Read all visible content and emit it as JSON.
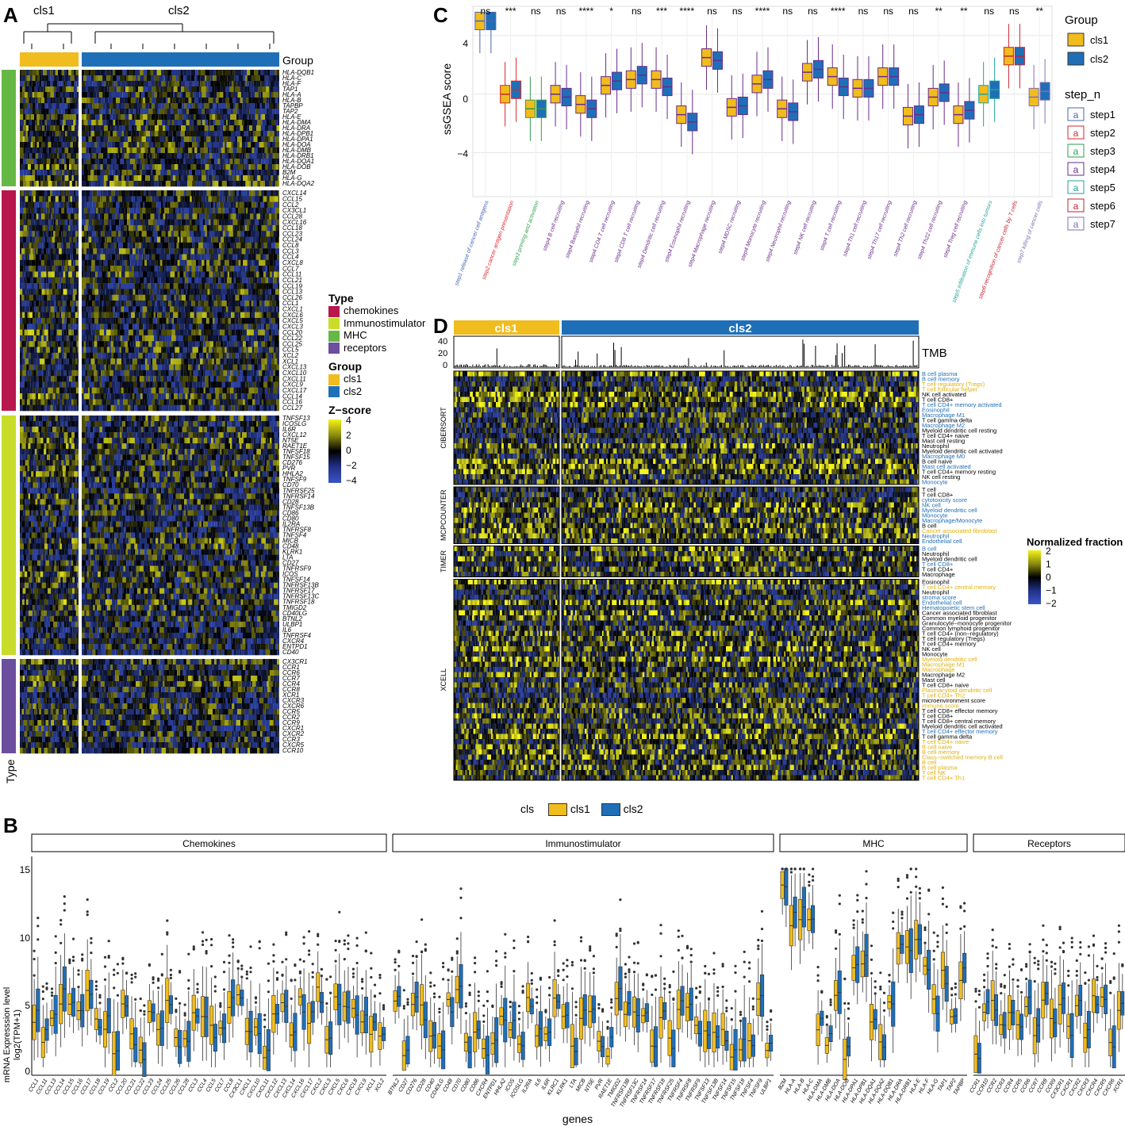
{
  "panel_letters": {
    "a": "A",
    "b": "B",
    "c": "C",
    "d": "D"
  },
  "colors": {
    "cls1": "#F0BC1E",
    "cls2": "#1F6FB8",
    "chemokines": "#B8174D",
    "Immunostimulator": "#C7DD2A",
    "MHC": "#66B845",
    "receptors": "#6C4E9E",
    "heat_low": "#2A3FA0",
    "heat_mid": "#000000",
    "heat_high": "#F4F41A",
    "step1": "#4A64B0",
    "step2": "#D9262C",
    "step3": "#2E9E4D",
    "step4": "#6A2A8A",
    "step5": "#23A39A",
    "step6": "#C4212F",
    "step7": "#7E6FB4"
  },
  "panelA": {
    "cluster_labels": [
      "cls1",
      "cls2"
    ],
    "group_label": "Group",
    "type_label": "Type",
    "legend_type_title": "Type",
    "legend_types": [
      "chemokines",
      "Immunostimulator",
      "MHC",
      "receptors"
    ],
    "legend_group_title": "Group",
    "legend_groups": [
      "cls1",
      "cls2"
    ],
    "legend_z_title": "Z−score",
    "legend_z_ticks": [
      "4",
      "2",
      "0",
      "−2",
      "−4"
    ],
    "genes_mhc": [
      "HLA-DQB1",
      "HLA-C",
      "HLA-F",
      "TAP1",
      "HLA-A",
      "HLA-B",
      "TAPBP",
      "TAP2",
      "HLA-E",
      "HLA-DMA",
      "HLA-DRA",
      "HLA-DPB1",
      "HLA-DPA1",
      "HLA-DOA",
      "HLA-DMB",
      "HLA-DRB1",
      "HLA-DQA1",
      "HLA-DOB",
      "B2M",
      "HLA-G",
      "HLA-DQA2"
    ],
    "genes_chemokines": [
      "CXCL14",
      "CCL15",
      "CCL2",
      "CX3CL1",
      "CCL28",
      "CXCL16",
      "CCL18",
      "CCL23",
      "CCL24",
      "CCL8",
      "CCL3",
      "CCL4",
      "CXCL8",
      "CCL7",
      "CCL11",
      "CCL21",
      "CCL19",
      "CCL13",
      "CCL26",
      "CCL1",
      "CXCL1",
      "CXCL6",
      "CXCL5",
      "CXCL3",
      "CCL20",
      "CCL22",
      "CCL25",
      "CCL5",
      "XCL2",
      "XCL1",
      "CXCL13",
      "CXCL10",
      "CXCL11",
      "CXCL9",
      "CXCL17",
      "CCL14",
      "CCL16",
      "CCL27"
    ],
    "genes_immuno": [
      "TNFSF13",
      "ICOSLG",
      "IL6R",
      "CXCL12",
      "NT5E",
      "RAET1E",
      "TNFSF18",
      "TNFSF15",
      "CD276",
      "PVR",
      "HHLA2",
      "TNFSF9",
      "CD70",
      "TNFRSF25",
      "TNFRSF14",
      "CD28",
      "TNFSF13B",
      "CD86",
      "CD80",
      "IL2RA",
      "TNFRSF8",
      "TNFSF4",
      "MICB",
      "CD48",
      "KLRK1",
      "LTA",
      "CD27",
      "TNFRSF9",
      "ICOS",
      "TNFSF14",
      "TNFRSF13B",
      "TNFRSF17",
      "TNFRSF13C",
      "TNFRSF18",
      "TMIGD2",
      "CD40LG",
      "BTNL2",
      "ULBP1",
      "IL6",
      "TNFRSF4",
      "CXCR4",
      "ENTPD1",
      "CD40"
    ],
    "genes_receptors": [
      "CX3CR1",
      "CCR1",
      "CCR6",
      "CCR7",
      "CCR4",
      "CCR8",
      "XCR1",
      "CXCR3",
      "CXCR6",
      "CCR5",
      "CCR2",
      "CCR9",
      "CXCR1",
      "CXCR2",
      "CCR3",
      "CXCR5",
      "CCR10"
    ]
  },
  "panelB": {
    "legend_title": "cls",
    "legend_items": [
      "cls1",
      "cls2"
    ],
    "facets": [
      "Chemokines",
      "Immunostimulator",
      "MHC",
      "Receptors"
    ],
    "ylabel_line1": "mRNA Expresssion level",
    "ylabel_line2": "log2(TPM+1)",
    "xlabel": "genes",
    "yticks": [
      "15",
      "10",
      "5",
      "0"
    ],
    "genes_chemokines": [
      "CCL1",
      "CCL11",
      "CCL13",
      "CCL14",
      "CCL15",
      "CCL16",
      "CCL17",
      "CCL18",
      "CCL19",
      "CCL2",
      "CCL20",
      "CCL21",
      "CCL22",
      "CCL23",
      "CCL24",
      "CCL25",
      "CCL26",
      "CCL28",
      "CCL3",
      "CCL4",
      "CCL5",
      "CCL7",
      "CCL8",
      "CX3CL1",
      "CXCL1",
      "CXCL10",
      "CXCL11",
      "CXCL12",
      "CXCL13",
      "CXCL14",
      "CXCL16",
      "CXCL17",
      "CXCL2",
      "CXCL3",
      "CXCL5",
      "CXCL6",
      "CXCL8",
      "CXCL9",
      "XCL1",
      "XCL2"
    ],
    "genes_immuno": [
      "BTNL2",
      "CD27",
      "CD276",
      "CD28",
      "CD40",
      "CD40LG",
      "CD48",
      "CD70",
      "CD80",
      "CD86",
      "CXCR4",
      "ENTPD1",
      "HHLA2",
      "ICOS",
      "ICOSLG",
      "IL2RA",
      "IL6",
      "IL6R",
      "KLRC1",
      "KLRK1",
      "LTA",
      "MICB",
      "NT5E",
      "PVR",
      "RAET1E",
      "TMIGD2",
      "TNFRSF13B",
      "TNFRSF13C",
      "TNFRSF14",
      "TNFRSF17",
      "TNFRSF18",
      "TNFRSF25",
      "TNFRSF4",
      "TNFRSF8",
      "TNFRSF9",
      "TNFSF13",
      "TNFSF13B",
      "TNFSF14",
      "TNFSF15",
      "TNFSF18",
      "TNFSF4",
      "TNFSF9",
      "ULBP1"
    ],
    "genes_mhc": [
      "B2M",
      "HLA-A",
      "HLA-B",
      "HLA-C",
      "HLA-DMA",
      "HLA-DMB",
      "HLA-DOA",
      "HLA-DOB",
      "HLA-DPA1",
      "HLA-DPB1",
      "HLA-DQA1",
      "HLA-DQA2",
      "HLA-DQB1",
      "HLA-DRA",
      "HLA-DRB1",
      "HLA-E",
      "HLA-F",
      "HLA-G",
      "TAP1",
      "TAP2",
      "TAPBP"
    ],
    "genes_receptors": [
      "CCR1",
      "CCR10",
      "CCR2",
      "CCR3",
      "CCR4",
      "CCR5",
      "CCR6",
      "CCR7",
      "CCR8",
      "CCR9",
      "CX3CR1",
      "CXCR1",
      "CXCR2",
      "CXCR3",
      "CXCR4",
      "CXCR5",
      "CXCR6",
      "XCR1"
    ]
  },
  "panelC": {
    "ylabel": "ssGSEA score",
    "yticks": [
      "4",
      "0",
      "−4"
    ],
    "legend_group_title": "Group",
    "legend_groups": [
      "cls1",
      "cls2"
    ],
    "legend_step_title": "step_n",
    "legend_steps": [
      "step1",
      "step2",
      "step3",
      "step4",
      "step5",
      "step6",
      "step7"
    ],
    "legend_glyph": "a"
  },
  "panelD": {
    "cluster_labels": [
      "cls1",
      "cls2"
    ],
    "tmb_label": "TMB",
    "tmb_ticks": [
      "40",
      "20",
      "0"
    ],
    "legend_title": "Normalized fraction",
    "legend_ticks": [
      "2",
      "1",
      "0",
      "−1",
      "−2"
    ],
    "blocks": [
      {
        "name": "CIBERSORT",
        "rows": [
          {
            "t": "B cell plasma",
            "c": "b"
          },
          {
            "t": "B cell memory",
            "c": "b"
          },
          {
            "t": "T cell regulatory (Tregs)",
            "c": "y"
          },
          {
            "t": "T cell follicular helper",
            "c": "y"
          },
          {
            "t": "NK cell activated",
            "c": "k"
          },
          {
            "t": "T cell CD8+",
            "c": "k"
          },
          {
            "t": "T cell CD4+ memory activated",
            "c": "b"
          },
          {
            "t": "Eosinophil",
            "c": "b"
          },
          {
            "t": "Macrophage M1",
            "c": "b"
          },
          {
            "t": "T cell gamma delta",
            "c": "k"
          },
          {
            "t": "Macrophage M2",
            "c": "b"
          },
          {
            "t": "Myeloid dendritic cell resting",
            "c": "k"
          },
          {
            "t": "T cell CD4+ naive",
            "c": "k"
          },
          {
            "t": "Mast cell resting",
            "c": "k"
          },
          {
            "t": "Neutrophil",
            "c": "k"
          },
          {
            "t": "Myeloid dendritic cell activated",
            "c": "k"
          },
          {
            "t": "Macrophage M0",
            "c": "b"
          },
          {
            "t": "B cell naive",
            "c": "k"
          },
          {
            "t": "Mast cell activated",
            "c": "b"
          },
          {
            "t": "T cell CD4+ memory resting",
            "c": "k"
          },
          {
            "t": "NK cell resting",
            "c": "k"
          },
          {
            "t": "Monocyte",
            "c": "b"
          }
        ]
      },
      {
        "name": "MCPCOUNTER",
        "rows": [
          {
            "t": "T cell",
            "c": "k"
          },
          {
            "t": "T cell CD8+",
            "c": "k"
          },
          {
            "t": "cytotoxicity score",
            "c": "b"
          },
          {
            "t": "NK cell",
            "c": "b"
          },
          {
            "t": "Myeloid dendritic cell",
            "c": "b"
          },
          {
            "t": "Monocyte",
            "c": "b"
          },
          {
            "t": "Macrophage/Monocyte",
            "c": "b"
          },
          {
            "t": "B cell",
            "c": "k"
          },
          {
            "t": "Cancer associated fibroblast",
            "c": "y"
          },
          {
            "t": "Neutrophil",
            "c": "b"
          },
          {
            "t": "Endothelial cell",
            "c": "b"
          }
        ]
      },
      {
        "name": "TIMER",
        "rows": [
          {
            "t": "B cell",
            "c": "b"
          },
          {
            "t": "Neutrophil",
            "c": "k"
          },
          {
            "t": "Myeloid dendritic cell",
            "c": "k"
          },
          {
            "t": "T cell CD8+",
            "c": "b"
          },
          {
            "t": "T cell CD4+",
            "c": "k"
          },
          {
            "t": "Macrophage",
            "c": "k"
          }
        ]
      },
      {
        "name": "XCELL",
        "rows": [
          {
            "t": "Eosinophil",
            "c": "k"
          },
          {
            "t": "T cell CD4+ central memory",
            "c": "y"
          },
          {
            "t": "Neutrophil",
            "c": "k"
          },
          {
            "t": "stroma score",
            "c": "b"
          },
          {
            "t": "Endothelial cell",
            "c": "b"
          },
          {
            "t": "Hematopoietic stem cell",
            "c": "b"
          },
          {
            "t": "Cancer associated fibroblast",
            "c": "k"
          },
          {
            "t": "Common myeloid progenitor",
            "c": "k"
          },
          {
            "t": "Granulocyte−monocyte progenitor",
            "c": "k"
          },
          {
            "t": "Common lymphoid progenitor",
            "c": "k"
          },
          {
            "t": "T cell CD4+ (non−regulatory)",
            "c": "k"
          },
          {
            "t": "T cell regulatory (Tregs)",
            "c": "k"
          },
          {
            "t": "T cell CD4+ memory",
            "c": "k"
          },
          {
            "t": "NK cell",
            "c": "k"
          },
          {
            "t": "Monocyte",
            "c": "k"
          },
          {
            "t": "Myeloid dendritic cell",
            "c": "y"
          },
          {
            "t": "Macrophage M1",
            "c": "y"
          },
          {
            "t": "Macrophage",
            "c": "y"
          },
          {
            "t": "Macrophage M2",
            "c": "k"
          },
          {
            "t": "Mast cell",
            "c": "k"
          },
          {
            "t": "T cell CD8+ naive",
            "c": "k"
          },
          {
            "t": "Plasmacytoid dendritic cell",
            "c": "y"
          },
          {
            "t": "T cell CD4+ Th2",
            "c": "y"
          },
          {
            "t": "microenvironment score",
            "c": "k"
          },
          {
            "t": "immune score",
            "c": "y"
          },
          {
            "t": "T cell CD8+ effector memory",
            "c": "k"
          },
          {
            "t": "T cell CD8+",
            "c": "k"
          },
          {
            "t": "T cell CD8+ central memory",
            "c": "k"
          },
          {
            "t": "Myeloid dendritic cell activated",
            "c": "k"
          },
          {
            "t": "T cell CD4+ effector memory",
            "c": "b"
          },
          {
            "t": "T cell gamma delta",
            "c": "k"
          },
          {
            "t": "T cell CD4+ naive",
            "c": "y"
          },
          {
            "t": "B cell naive",
            "c": "y"
          },
          {
            "t": "B cell memory",
            "c": "y"
          },
          {
            "t": "Class−switched memory B cell",
            "c": "y"
          },
          {
            "t": "B cell",
            "c": "y"
          },
          {
            "t": "B cell plasma",
            "c": "y"
          },
          {
            "t": "T cell NK",
            "c": "y"
          },
          {
            "t": "T cell CD4+ Th1",
            "c": "y"
          }
        ]
      }
    ]
  },
  "chart_data": [
    {
      "type": "heatmap",
      "panel": "A",
      "title": "",
      "columns_groups": [
        "cls1",
        "cls2"
      ],
      "row_groups": [
        "MHC",
        "chemokines",
        "Immunostimulator",
        "receptors"
      ],
      "color_scale": {
        "name": "Z−score",
        "range": [
          -4,
          4
        ]
      }
    },
    {
      "type": "box",
      "panel": "C",
      "ylabel": "ssGSEA score",
      "ylim": [
        -7,
        6
      ],
      "categories": [
        "step1 release of cancer cell antigens",
        "step2 cancer antigen presentation",
        "step3 priming and activation",
        "step4 B cell recruiting",
        "step4 Basophil recruiting",
        "step4 CD4 T cell recruiting",
        "step4 CD8 T cell recruiting",
        "step4 Dendritic cell recruiting",
        "step4 Eosinophil recruiting",
        "step4 Macrophage recruiting",
        "step4 MDSC recruiting",
        "step4 Monocyte recruiting",
        "step4 Neutrophil recruiting",
        "step4 NK cell recruiting",
        "step4 T cell recruiting",
        "step4 Th1 cell recruiting",
        "step4 Th17 cell recruiting",
        "step4 Th2 cell recruiting",
        "step4 Th22 cell recruiting",
        "step4 Treg cell recruiting",
        "step5 infiltration of immune cells into tumors",
        "step6 recognition of cancer cells by T cells",
        "step7 killing of cancer cells"
      ],
      "step": [
        1,
        2,
        3,
        4,
        4,
        4,
        4,
        4,
        4,
        4,
        4,
        4,
        4,
        4,
        4,
        4,
        4,
        4,
        4,
        4,
        5,
        6,
        7
      ],
      "significance": [
        "ns",
        "***",
        "ns",
        "ns",
        "****",
        "*",
        "ns",
        "***",
        "****",
        "ns",
        "ns",
        "****",
        "ns",
        "ns",
        "****",
        "ns",
        "ns",
        "ns",
        "**",
        "**",
        "ns",
        "ns",
        "**"
      ],
      "series": [
        {
          "name": "cls1",
          "median": [
            5.0,
            0.0,
            -1.0,
            0.0,
            -0.7,
            0.6,
            1.0,
            1.0,
            -1.4,
            2.5,
            -0.9,
            0.7,
            -1.0,
            1.5,
            1.2,
            0.4,
            1.2,
            -1.5,
            -0.2,
            -1.4,
            0.0,
            2.6,
            -0.2
          ]
        },
        {
          "name": "cls2",
          "median": [
            5.0,
            0.3,
            -1.0,
            -0.2,
            -1.0,
            0.9,
            1.3,
            0.5,
            -1.9,
            2.3,
            -0.8,
            1.0,
            -1.2,
            1.7,
            0.5,
            0.4,
            1.2,
            -1.4,
            0.1,
            -1.1,
            0.3,
            2.6,
            0.2
          ]
        }
      ]
    },
    {
      "type": "heatmap",
      "panel": "D",
      "columns_groups": [
        "cls1",
        "cls2"
      ],
      "tmb_range": [
        0,
        45
      ],
      "color_scale": {
        "name": "Normalized fraction",
        "range": [
          -2,
          2
        ]
      }
    },
    {
      "type": "box",
      "panel": "B",
      "ylabel": "mRNA Expresssion level log2(TPM+1)",
      "xlabel": "genes",
      "ylim": [
        0,
        15
      ],
      "facets": [
        "Chemokines",
        "Immunostimulator",
        "MHC",
        "Receptors"
      ],
      "series_names": [
        "cls1",
        "cls2"
      ]
    }
  ]
}
